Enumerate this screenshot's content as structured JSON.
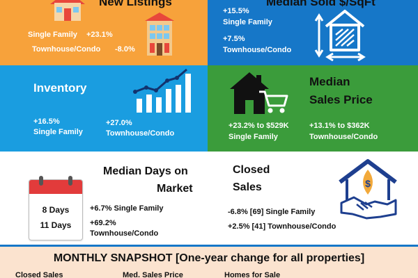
{
  "new_listings": {
    "title": "New Listings",
    "single_family_label": "Single Family",
    "single_family_value": "+23.1%",
    "townhouse_label": "Townhouse/Condo",
    "townhouse_value": "-8.0%"
  },
  "median_sold": {
    "title": "Median Sold $/SqFt",
    "sf_value": "+15.5%",
    "sf_label": "Single Family",
    "tc_value": "+7.5%",
    "tc_label": "Townhouse/Condo"
  },
  "inventory": {
    "title": "Inventory",
    "sf_value": "+16.5%",
    "sf_label": "Single Family",
    "tc_value": "+27.0%",
    "tc_label": "Townhouse/Condo"
  },
  "median_sales_price": {
    "title_line1": "Median",
    "title_line2": "Sales Price",
    "sf_value": "+23.2% to $529K",
    "sf_label": "Single Family",
    "tc_value": "+13.1% to $362K",
    "tc_label": "Townhouse/Condo"
  },
  "days_on_market": {
    "title_line1": "Median Days on",
    "title_line2": "Market",
    "sf_days": "8 Days",
    "tc_days": "11 Days",
    "sf_change": "+6.7%  Single Family",
    "tc_change_line1": "+69.2%",
    "tc_change_line2": "Townhouse/Condo"
  },
  "closed_sales": {
    "title_line1": "Closed",
    "title_line2": "Sales",
    "sf_change": "-6.8% [69]  Single Family",
    "tc_change": "+2.5% [41]  Townhouse/Condo"
  },
  "snapshot": {
    "title": "MONTHLY SNAPSHOT [One-year change for all properties]",
    "col1": "Closed Sales",
    "col2": "Med. Sales Price",
    "col3": "Homes for Sale"
  },
  "colors": {
    "orange": "#f7a23b",
    "blue": "#1677c8",
    "light_blue": "#1a9de0",
    "green": "#3b9c3b",
    "cream": "#fbe3cf"
  }
}
